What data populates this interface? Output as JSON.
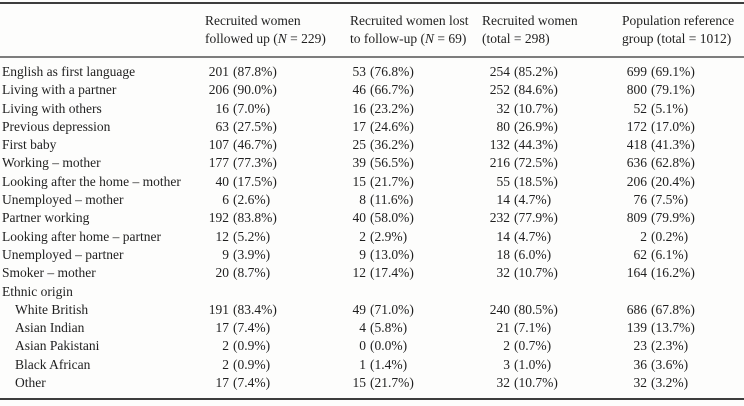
{
  "table": {
    "columns": [
      {
        "line1": "Recruited women",
        "line2_pre": "followed up (",
        "line2_var": "N",
        "line2_post": " = 229)"
      },
      {
        "line1": "Recruited women lost",
        "line2_pre": "to follow-up (",
        "line2_var": "N",
        "line2_post": " = 69)"
      },
      {
        "line1": "Recruited women",
        "line2_pre": "(total = 298)",
        "line2_var": "",
        "line2_post": ""
      },
      {
        "line1": "Population reference",
        "line2_pre": "group (total = 1012)",
        "line2_var": "",
        "line2_post": ""
      }
    ],
    "rows": [
      {
        "label": "English as first language",
        "indent": false,
        "cells": [
          {
            "n": "201",
            "p": "(87.8%)"
          },
          {
            "n": "53",
            "p": "(76.8%)"
          },
          {
            "n": "254",
            "p": "(85.2%)"
          },
          {
            "n": "699",
            "p": "(69.1%)"
          }
        ]
      },
      {
        "label": "Living with a partner",
        "indent": false,
        "cells": [
          {
            "n": "206",
            "p": "(90.0%)"
          },
          {
            "n": "46",
            "p": "(66.7%)"
          },
          {
            "n": "252",
            "p": "(84.6%)"
          },
          {
            "n": "800",
            "p": "(79.1%)"
          }
        ]
      },
      {
        "label": "Living with others",
        "indent": false,
        "cells": [
          {
            "n": "16",
            "p": "(7.0%)"
          },
          {
            "n": "16",
            "p": "(23.2%)"
          },
          {
            "n": "32",
            "p": "(10.7%)"
          },
          {
            "n": "52",
            "p": "(5.1%)"
          }
        ]
      },
      {
        "label": "Previous depression",
        "indent": false,
        "cells": [
          {
            "n": "63",
            "p": "(27.5%)"
          },
          {
            "n": "17",
            "p": "(24.6%)"
          },
          {
            "n": "80",
            "p": "(26.9%)"
          },
          {
            "n": "172",
            "p": "(17.0%)"
          }
        ]
      },
      {
        "label": "First baby",
        "indent": false,
        "cells": [
          {
            "n": "107",
            "p": "(46.7%)"
          },
          {
            "n": "25",
            "p": "(36.2%)"
          },
          {
            "n": "132",
            "p": "(44.3%)"
          },
          {
            "n": "418",
            "p": "(41.3%)"
          }
        ]
      },
      {
        "label": "Working – mother",
        "indent": false,
        "cells": [
          {
            "n": "177",
            "p": "(77.3%)"
          },
          {
            "n": "39",
            "p": "(56.5%)"
          },
          {
            "n": "216",
            "p": "(72.5%)"
          },
          {
            "n": "636",
            "p": "(62.8%)"
          }
        ]
      },
      {
        "label": "Looking after the home – mother",
        "indent": false,
        "cells": [
          {
            "n": "40",
            "p": "(17.5%)"
          },
          {
            "n": "15",
            "p": "(21.7%)"
          },
          {
            "n": "55",
            "p": "(18.5%)"
          },
          {
            "n": "206",
            "p": "(20.4%)"
          }
        ]
      },
      {
        "label": "Unemployed – mother",
        "indent": false,
        "cells": [
          {
            "n": "6",
            "p": "(2.6%)"
          },
          {
            "n": "8",
            "p": "(11.6%)"
          },
          {
            "n": "14",
            "p": "(4.7%)"
          },
          {
            "n": "76",
            "p": "(7.5%)"
          }
        ]
      },
      {
        "label": "Partner working",
        "indent": false,
        "cells": [
          {
            "n": "192",
            "p": "(83.8%)"
          },
          {
            "n": "40",
            "p": "(58.0%)"
          },
          {
            "n": "232",
            "p": "(77.9%)"
          },
          {
            "n": "809",
            "p": "(79.9%)"
          }
        ]
      },
      {
        "label": "Looking after home – partner",
        "indent": false,
        "cells": [
          {
            "n": "12",
            "p": "(5.2%)"
          },
          {
            "n": "2",
            "p": "(2.9%)"
          },
          {
            "n": "14",
            "p": "(4.7%)"
          },
          {
            "n": "2",
            "p": "(0.2%)"
          }
        ]
      },
      {
        "label": "Unemployed – partner",
        "indent": false,
        "cells": [
          {
            "n": "9",
            "p": "(3.9%)"
          },
          {
            "n": "9",
            "p": "(13.0%)"
          },
          {
            "n": "18",
            "p": "(6.0%)"
          },
          {
            "n": "62",
            "p": "(6.1%)"
          }
        ]
      },
      {
        "label": "Smoker – mother",
        "indent": false,
        "cells": [
          {
            "n": "20",
            "p": "(8.7%)"
          },
          {
            "n": "12",
            "p": "(17.4%)"
          },
          {
            "n": "32",
            "p": "(10.7%)"
          },
          {
            "n": "164",
            "p": "(16.2%)"
          }
        ]
      },
      {
        "label": "Ethnic origin",
        "indent": false,
        "cells": []
      },
      {
        "label": "White British",
        "indent": true,
        "cells": [
          {
            "n": "191",
            "p": "(83.4%)"
          },
          {
            "n": "49",
            "p": "(71.0%)"
          },
          {
            "n": "240",
            "p": "(80.5%)"
          },
          {
            "n": "686",
            "p": "(67.8%)"
          }
        ]
      },
      {
        "label": "Asian Indian",
        "indent": true,
        "cells": [
          {
            "n": "17",
            "p": "(7.4%)"
          },
          {
            "n": "4",
            "p": "(5.8%)"
          },
          {
            "n": "21",
            "p": "(7.1%)"
          },
          {
            "n": "139",
            "p": "(13.7%)"
          }
        ]
      },
      {
        "label": "Asian Pakistani",
        "indent": true,
        "cells": [
          {
            "n": "2",
            "p": "(0.9%)"
          },
          {
            "n": "0",
            "p": "(0.0%)"
          },
          {
            "n": "2",
            "p": "(0.7%)"
          },
          {
            "n": "23",
            "p": "(2.3%)"
          }
        ]
      },
      {
        "label": "Black African",
        "indent": true,
        "cells": [
          {
            "n": "2",
            "p": "(0.9%)"
          },
          {
            "n": "1",
            "p": "(1.4%)"
          },
          {
            "n": "3",
            "p": "(1.0%)"
          },
          {
            "n": "36",
            "p": "(3.6%)"
          }
        ]
      },
      {
        "label": "Other",
        "indent": true,
        "cells": [
          {
            "n": "17",
            "p": "(7.4%)"
          },
          {
            "n": "15",
            "p": "(21.7%)"
          },
          {
            "n": "32",
            "p": "(10.7%)"
          },
          {
            "n": "32",
            "p": "(3.2%)"
          }
        ]
      }
    ]
  }
}
